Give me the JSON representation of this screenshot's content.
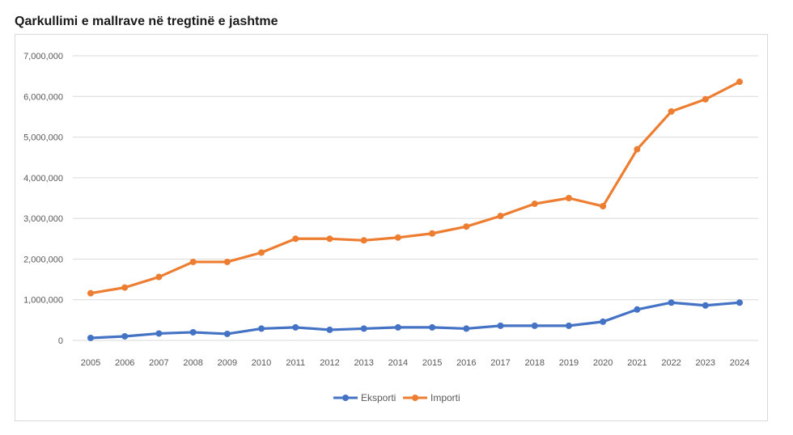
{
  "title": "Qarkullimi e mallrave në tregtinë e jashtme",
  "chart_data": {
    "type": "line",
    "title": "Qarkullimi e mallrave në tregtinë e jashtme",
    "xlabel": "",
    "ylabel": "",
    "ylim": [
      0,
      7000000
    ],
    "yticks": [
      0,
      1000000,
      2000000,
      3000000,
      4000000,
      5000000,
      6000000,
      7000000
    ],
    "ytick_labels": [
      "0",
      "1,000,000",
      "2,000,000",
      "3,000,000",
      "4,000,000",
      "5,000,000",
      "6,000,000",
      "7,000,000"
    ],
    "grid": true,
    "legend_position": "bottom",
    "x": [
      "2005",
      "2006",
      "2007",
      "2008",
      "2009",
      "2010",
      "2011",
      "2012",
      "2013",
      "2014",
      "2015",
      "2016",
      "2017",
      "2018",
      "2019",
      "2020",
      "2021",
      "2022",
      "2023",
      "2024"
    ],
    "series": [
      {
        "name": "Eksporti",
        "color": "#4472c4",
        "values": [
          60000,
          100000,
          170000,
          200000,
          160000,
          290000,
          320000,
          260000,
          290000,
          320000,
          320000,
          290000,
          360000,
          360000,
          360000,
          460000,
          760000,
          930000,
          860000,
          930000
        ]
      },
      {
        "name": "Importi",
        "color": "#ed7d31",
        "values": [
          1160000,
          1300000,
          1560000,
          1930000,
          1930000,
          2160000,
          2500000,
          2500000,
          2460000,
          2530000,
          2630000,
          2800000,
          3060000,
          3360000,
          3500000,
          3300000,
          4700000,
          5630000,
          5930000,
          6360000
        ]
      }
    ]
  }
}
